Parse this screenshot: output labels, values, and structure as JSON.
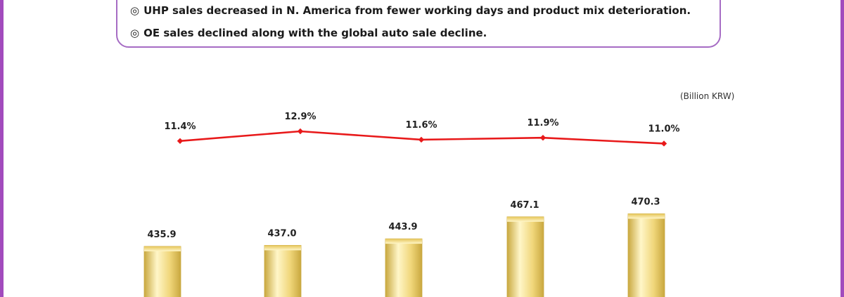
{
  "notes": {
    "items": [
      {
        "mark": "◎",
        "text": "UHP sales decreased in N. America from fewer working days and product mix deterioration."
      },
      {
        "mark": "◎",
        "text": "OE sales declined along with the global auto sale decline."
      }
    ]
  },
  "unit_label": "(Billion KRW)",
  "colors": {
    "frame": "#a24bbd",
    "note_border": "#a66cc4",
    "bar_light": "#fff6c8",
    "bar_mid": "#f0d67a",
    "bar_dark": "#c9a83f",
    "line": "#e8191a"
  },
  "chart_data": {
    "type": "bar",
    "categories": [
      "",
      "",
      "",
      "",
      ""
    ],
    "series": [
      {
        "type": "bar",
        "values": [
          435.9,
          437.0,
          443.9,
          467.1,
          470.3
        ],
        "labels": [
          "435.9",
          "437.0",
          "443.9",
          "467.1",
          "470.3"
        ]
      },
      {
        "type": "line",
        "values": [
          11.4,
          12.9,
          11.6,
          11.9,
          11.0
        ],
        "labels": [
          "11.4%",
          "12.9%",
          "11.6%",
          "11.9%",
          "11.0%"
        ]
      }
    ],
    "title": "",
    "xlabel": "",
    "ylabel": "",
    "unit": "(Billion KRW)"
  }
}
